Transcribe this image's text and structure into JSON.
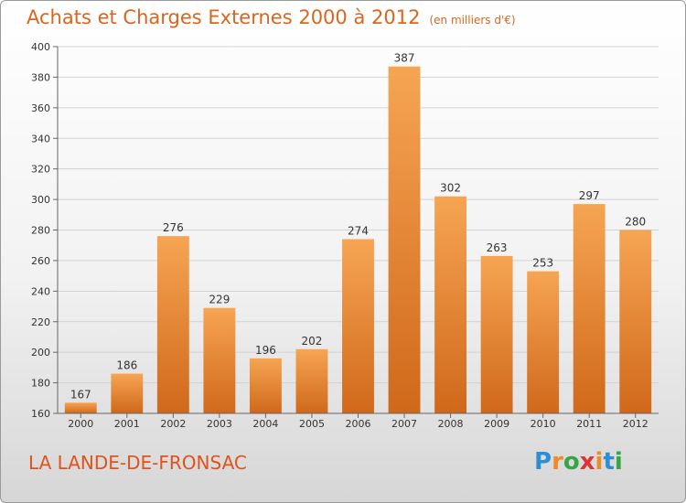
{
  "header": {
    "title": "Achats et Charges Externes 2000 à 2012",
    "unit": "(en milliers d'€)"
  },
  "footer": {
    "city": "LA LANDE-DE-FRONSAC",
    "logo_letters": [
      "P",
      "r",
      "o",
      "x",
      "i",
      "t",
      "i"
    ],
    "logo_colors": [
      "#2c8fd6",
      "#f08a24",
      "#35a640",
      "#e23232",
      "#f08a24",
      "#2c8fd6",
      "#35a640"
    ]
  },
  "colors": {
    "bar_top": "#f6a553",
    "bar_bottom": "#d0681a",
    "accent": "#d9661f"
  },
  "chart_data": {
    "type": "bar",
    "title": "Achats et Charges Externes 2000 à 2012",
    "subtitle": "(en milliers d'€)",
    "categories": [
      "2000",
      "2001",
      "2002",
      "2003",
      "2004",
      "2005",
      "2006",
      "2007",
      "2008",
      "2009",
      "2010",
      "2011",
      "2012"
    ],
    "values": [
      167,
      186,
      276,
      229,
      196,
      202,
      274,
      387,
      302,
      263,
      253,
      297,
      280
    ],
    "ylim": [
      160,
      400
    ],
    "yticks": [
      160,
      180,
      200,
      220,
      240,
      260,
      280,
      300,
      320,
      340,
      360,
      380,
      400
    ],
    "grid": true,
    "legend": "none"
  }
}
